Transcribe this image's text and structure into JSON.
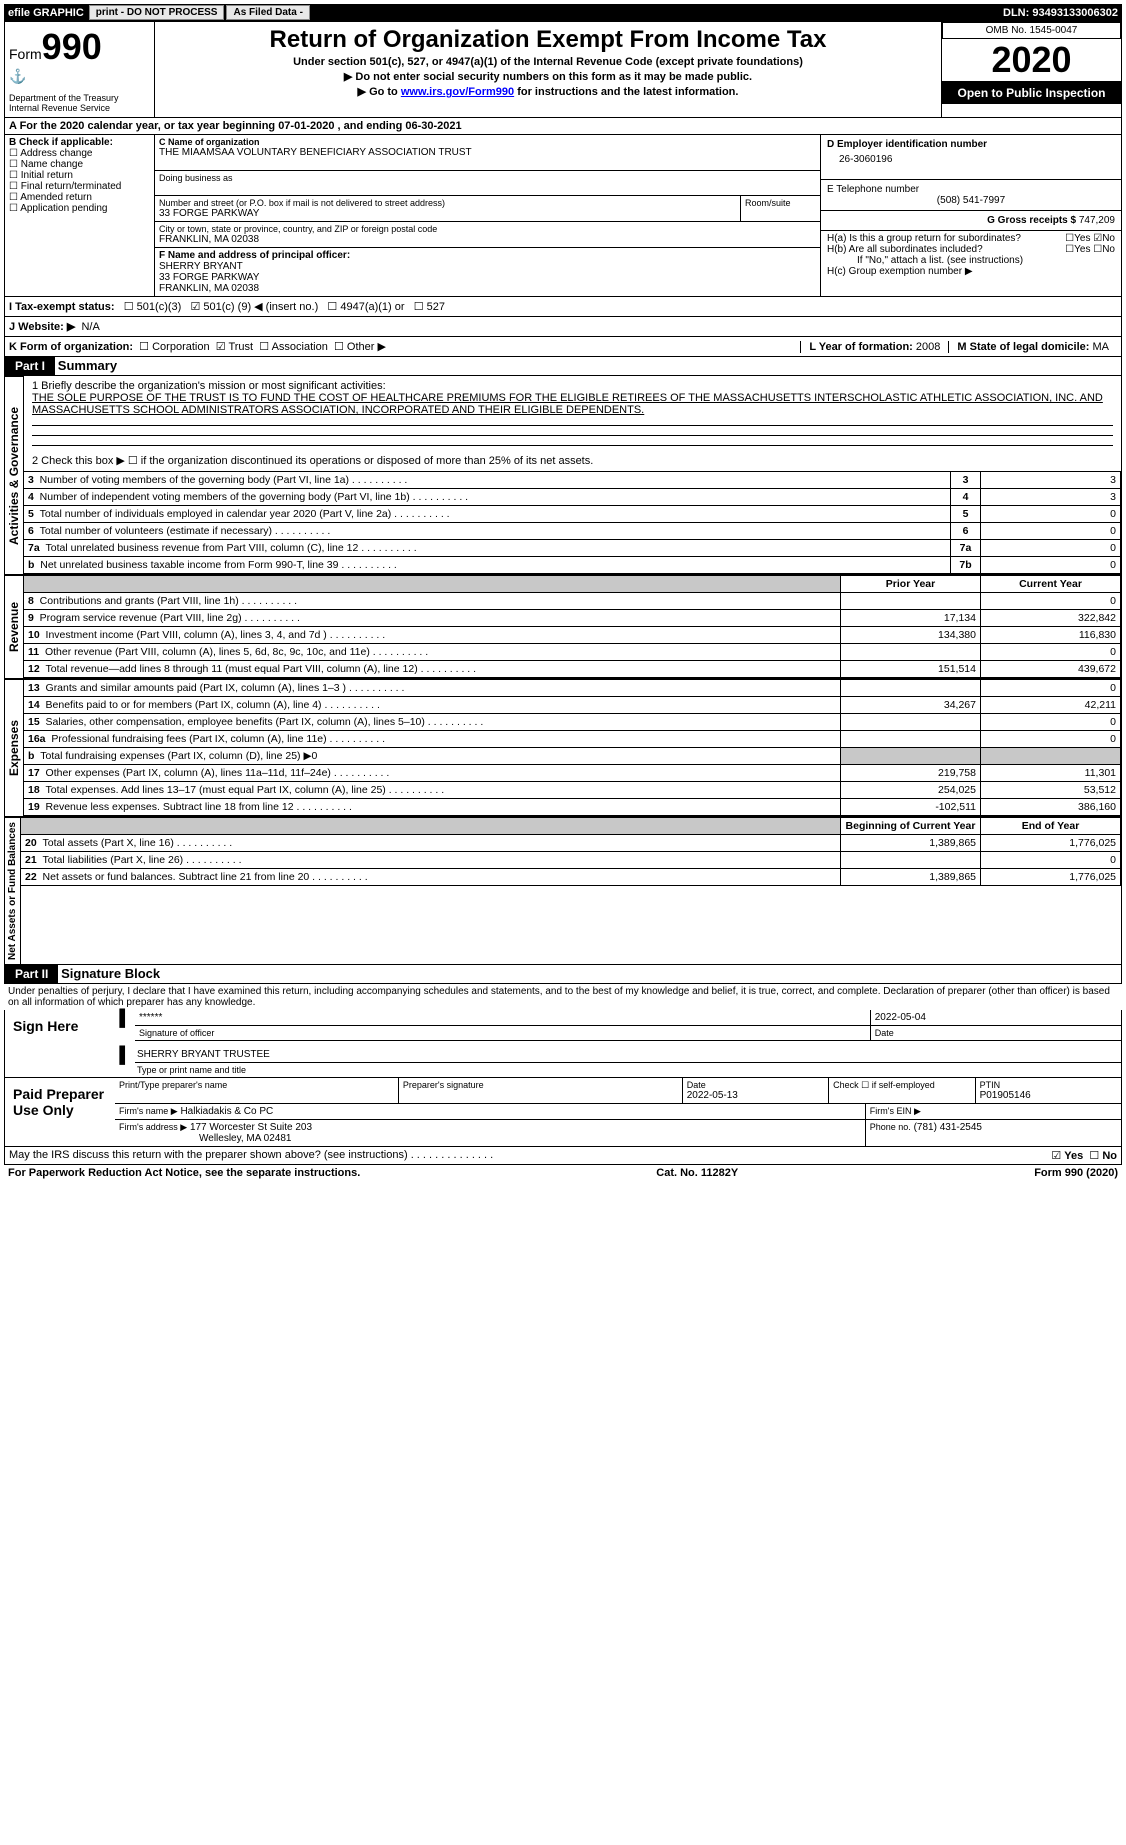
{
  "colors": {
    "black": "#000000",
    "white": "#ffffff",
    "grey": "#c8c8c8",
    "btn_bg": "#e8e8e8",
    "link": "#0000ff"
  },
  "topbar": {
    "efile": "efile GRAPHIC",
    "print": "print - DO NOT PROCESS",
    "asfiled": "As Filed Data -",
    "dln_label": "DLN:",
    "dln": "93493133006302"
  },
  "header": {
    "form_label": "Form",
    "form_no": "990",
    "dept": "Department of the Treasury",
    "irs": "Internal Revenue Service",
    "title": "Return of Organization Exempt From Income Tax",
    "sub1": "Under section 501(c), 527, or 4947(a)(1) of the Internal Revenue Code (except private foundations)",
    "sub2": "▶ Do not enter social security numbers on this form as it may be made public.",
    "sub3_pre": "▶ Go to ",
    "sub3_link": "www.irs.gov/Form990",
    "sub3_post": " for instructions and the latest information.",
    "omb_label": "OMB No. 1545-0047",
    "year": "2020",
    "open": "Open to Public Inspection"
  },
  "rowA": "A  For the 2020 calendar year, or tax year beginning 07-01-2020  , and ending 06-30-2021",
  "B": {
    "label": "B Check if applicable:",
    "items": [
      "Address change",
      "Name change",
      "Initial return",
      "Final return/terminated",
      "Amended return",
      "Application pending"
    ]
  },
  "C": {
    "name_label": "C Name of organization",
    "name": "THE MIAAMSAA VOLUNTARY BENEFICIARY ASSOCIATION TRUST",
    "dba_label": "Doing business as",
    "dba": "",
    "street_label": "Number and street (or P.O. box if mail is not delivered to street address)",
    "room_label": "Room/suite",
    "street": "33 FORGE PARKWAY",
    "city_label": "City or town, state or province, country, and ZIP or foreign postal code",
    "city": "FRANKLIN, MA  02038"
  },
  "D": {
    "label": "D Employer identification number",
    "ein": "26-3060196"
  },
  "E": {
    "label": "E Telephone number",
    "phone": "(508) 541-7997"
  },
  "F": {
    "label": "F  Name and address of principal officer:",
    "name": "SHERRY BRYANT",
    "street": "33 FORGE PARKWAY",
    "city": "FRANKLIN, MA  02038"
  },
  "G": {
    "label": "G Gross receipts $",
    "val": "747,209"
  },
  "H": {
    "a": "H(a) Is this a group return for subordinates?",
    "a_yes": "Yes",
    "a_no": "No",
    "a_ans": "No",
    "b": "H(b) Are all subordinates included?",
    "b_yes": "Yes",
    "b_no": "No",
    "b_note": "If \"No,\" attach a list. (see instructions)",
    "c": "H(c) Group exemption number ▶"
  },
  "I": {
    "label": "I  Tax-exempt status:",
    "opt1": "501(c)(3)",
    "opt2_pre": "501(c) (",
    "opt2_val": "9",
    "opt2_post": ") ◀ (insert no.)",
    "opt3": "4947(a)(1) or",
    "opt4": "527"
  },
  "J": {
    "label": "J  Website: ▶",
    "val": "N/A"
  },
  "K": {
    "label": "K Form of organization:",
    "opts": [
      "Corporation",
      "Trust",
      "Association",
      "Other ▶"
    ],
    "selected": "Trust"
  },
  "L": {
    "label": "L Year of formation:",
    "val": "2008"
  },
  "M": {
    "label": "M State of legal domicile:",
    "val": "MA"
  },
  "part1": {
    "hdr": "Part I",
    "title": "Summary",
    "mission_label": "1  Briefly describe the organization's mission or most significant activities:",
    "mission": "THE SOLE PURPOSE OF THE TRUST IS TO FUND THE COST OF HEALTHCARE PREMIUMS FOR THE ELIGIBLE RETIREES OF THE MASSACHUSETTS INTERSCHOLASTIC ATHLETIC ASSOCIATION, INC. AND MASSACHUSETTS SCHOOL ADMINISTRATORS ASSOCIATION, INCORPORATED AND THEIR ELIGIBLE DEPENDENTS.",
    "line2": "2  Check this box ▶ ☐ if the organization discontinued its operations or disposed of more than 25% of its net assets.",
    "side_labels": [
      "Activities & Governance",
      "Revenue",
      "Expenses",
      "Net Assets or Fund Balances"
    ],
    "col_prior": "Prior Year",
    "col_curr": "Current Year",
    "col_boy": "Beginning of Current Year",
    "col_eoy": "End of Year",
    "rows_ag": [
      {
        "n": "3",
        "desc": "Number of voting members of the governing body (Part VI, line 1a)",
        "box": "3",
        "val": "3"
      },
      {
        "n": "4",
        "desc": "Number of independent voting members of the governing body (Part VI, line 1b)",
        "box": "4",
        "val": "3"
      },
      {
        "n": "5",
        "desc": "Total number of individuals employed in calendar year 2020 (Part V, line 2a)",
        "box": "5",
        "val": "0"
      },
      {
        "n": "6",
        "desc": "Total number of volunteers (estimate if necessary)",
        "box": "6",
        "val": "0"
      },
      {
        "n": "7a",
        "desc": "Total unrelated business revenue from Part VIII, column (C), line 12",
        "box": "7a",
        "val": "0"
      },
      {
        "n": "b",
        "desc": "Net unrelated business taxable income from Form 990-T, line 39",
        "box": "7b",
        "val": "0"
      }
    ],
    "rows_rev": [
      {
        "n": "8",
        "desc": "Contributions and grants (Part VIII, line 1h)",
        "p": "",
        "c": "0"
      },
      {
        "n": "9",
        "desc": "Program service revenue (Part VIII, line 2g)",
        "p": "17,134",
        "c": "322,842"
      },
      {
        "n": "10",
        "desc": "Investment income (Part VIII, column (A), lines 3, 4, and 7d )",
        "p": "134,380",
        "c": "116,830"
      },
      {
        "n": "11",
        "desc": "Other revenue (Part VIII, column (A), lines 5, 6d, 8c, 9c, 10c, and 11e)",
        "p": "",
        "c": "0"
      },
      {
        "n": "12",
        "desc": "Total revenue—add lines 8 through 11 (must equal Part VIII, column (A), line 12)",
        "p": "151,514",
        "c": "439,672"
      }
    ],
    "rows_exp": [
      {
        "n": "13",
        "desc": "Grants and similar amounts paid (Part IX, column (A), lines 1–3 )",
        "p": "",
        "c": "0"
      },
      {
        "n": "14",
        "desc": "Benefits paid to or for members (Part IX, column (A), line 4)",
        "p": "34,267",
        "c": "42,211"
      },
      {
        "n": "15",
        "desc": "Salaries, other compensation, employee benefits (Part IX, column (A), lines 5–10)",
        "p": "",
        "c": "0"
      },
      {
        "n": "16a",
        "desc": "Professional fundraising fees (Part IX, column (A), line 11e)",
        "p": "",
        "c": "0"
      },
      {
        "n": "b",
        "desc": "Total fundraising expenses (Part IX, column (D), line 25) ▶0",
        "p": "grey",
        "c": "grey"
      },
      {
        "n": "17",
        "desc": "Other expenses (Part IX, column (A), lines 11a–11d, 11f–24e)",
        "p": "219,758",
        "c": "11,301"
      },
      {
        "n": "18",
        "desc": "Total expenses. Add lines 13–17 (must equal Part IX, column (A), line 25)",
        "p": "254,025",
        "c": "53,512"
      },
      {
        "n": "19",
        "desc": "Revenue less expenses. Subtract line 18 from line 12",
        "p": "-102,511",
        "c": "386,160"
      }
    ],
    "rows_na": [
      {
        "n": "20",
        "desc": "Total assets (Part X, line 16)",
        "p": "1,389,865",
        "c": "1,776,025"
      },
      {
        "n": "21",
        "desc": "Total liabilities (Part X, line 26)",
        "p": "",
        "c": "0"
      },
      {
        "n": "22",
        "desc": "Net assets or fund balances. Subtract line 21 from line 20",
        "p": "1,389,865",
        "c": "1,776,025"
      }
    ]
  },
  "part2": {
    "hdr": "Part II",
    "title": "Signature Block",
    "decl": "Under penalties of perjury, I declare that I have examined this return, including accompanying schedules and statements, and to the best of my knowledge and belief, it is true, correct, and complete. Declaration of preparer (other than officer) is based on all information of which preparer has any knowledge.",
    "sign_here": "Sign Here",
    "stars": "******",
    "sig_officer": "Signature of officer",
    "date_label": "Date",
    "sig_date": "2022-05-04",
    "name_title": "SHERRY BRYANT TRUSTEE",
    "type_label": "Type or print name and title",
    "paid": "Paid Preparer Use Only",
    "prep_name_label": "Print/Type preparer's name",
    "prep_sig_label": "Preparer's signature",
    "prep_date_label": "Date",
    "prep_date": "2022-05-13",
    "check_if": "Check ☐ if self-employed",
    "ptin_label": "PTIN",
    "ptin": "P01905146",
    "firm_name_label": "Firm's name   ▶",
    "firm_name": "Halkiadakis & Co PC",
    "firm_ein_label": "Firm's EIN ▶",
    "firm_addr_label": "Firm's address ▶",
    "firm_addr": "177 Worcester St Suite 203",
    "firm_city": "Wellesley, MA  02481",
    "phone_label": "Phone no.",
    "phone": "(781) 431-2545",
    "discuss": "May the IRS discuss this return with the preparer shown above? (see instructions)",
    "discuss_yes": "Yes",
    "discuss_no": "No"
  },
  "footer": {
    "pra": "For Paperwork Reduction Act Notice, see the separate instructions.",
    "cat": "Cat. No. 11282Y",
    "form": "Form 990 (2020)"
  }
}
